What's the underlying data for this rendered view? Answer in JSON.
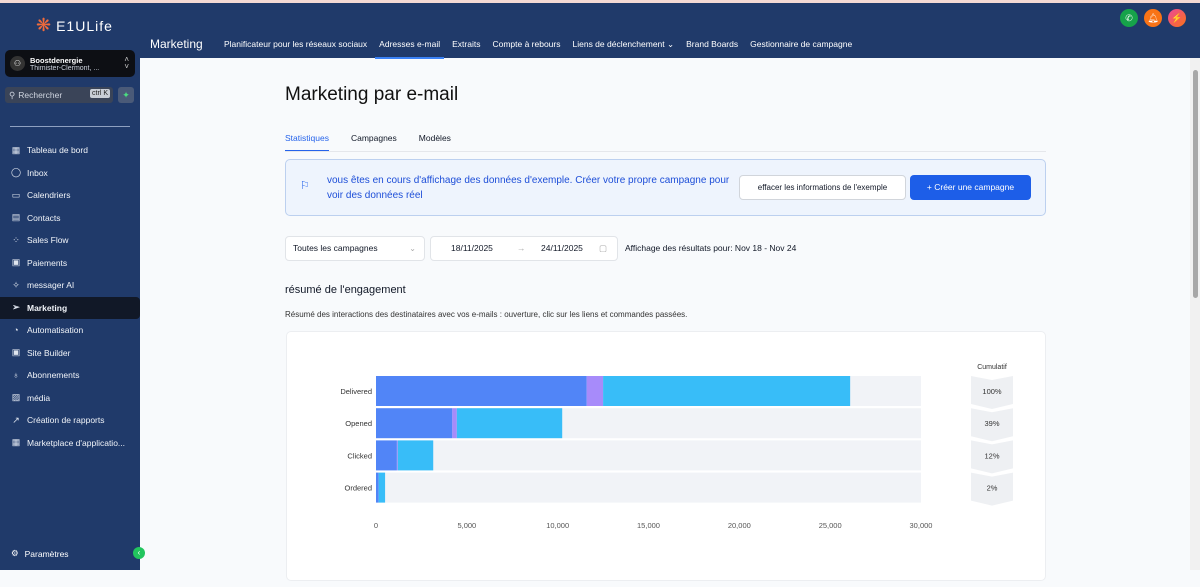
{
  "brand": "E1ULife",
  "account": {
    "name": "Boostdenergie",
    "location": "Thimister-Clermont, ..."
  },
  "search": {
    "placeholder": "Rechercher",
    "shortcut": "ctrl K"
  },
  "sidebar": {
    "items": [
      {
        "label": "Tableau de bord",
        "icon": "dashboard-icon",
        "glyph": "▦"
      },
      {
        "label": "Inbox",
        "icon": "chat-icon",
        "glyph": "◯"
      },
      {
        "label": "Calendriers",
        "icon": "calendar-icon",
        "glyph": "▭"
      },
      {
        "label": "Contacts",
        "icon": "contacts-icon",
        "glyph": "▤"
      },
      {
        "label": "Sales Flow",
        "icon": "flow-icon",
        "glyph": "⁘"
      },
      {
        "label": "Paiements",
        "icon": "payment-icon",
        "glyph": "▣"
      },
      {
        "label": "messager AI",
        "icon": "sparkle-icon",
        "glyph": "✧"
      },
      {
        "label": "Marketing",
        "icon": "send-icon",
        "glyph": "➢",
        "active": true
      },
      {
        "label": "Automatisation",
        "icon": "automation-icon",
        "glyph": "◔"
      },
      {
        "label": "Site Builder",
        "icon": "site-icon",
        "glyph": "▣"
      },
      {
        "label": "Abonnements",
        "icon": "award-icon",
        "glyph": "♁"
      },
      {
        "label": "média",
        "icon": "image-icon",
        "glyph": "▨"
      },
      {
        "label": "Création de rapports",
        "icon": "trend-icon",
        "glyph": "↗"
      },
      {
        "label": "Marketplace d'applicatio...",
        "icon": "apps-icon",
        "glyph": "▦"
      }
    ],
    "settings": "Paramètres"
  },
  "topbar": {
    "title": "Marketing",
    "tabs": [
      "Planificateur pour les réseaux sociaux",
      "Adresses e-mail",
      "Extraits",
      "Compte à rebours",
      "Liens de déclenchement ⌄",
      "Brand Boards",
      "Gestionnaire de campagne"
    ],
    "active": 1
  },
  "page": {
    "title": "Marketing par e-mail",
    "subtabs": [
      "Statistiques",
      "Campagnes",
      "Modèles"
    ],
    "banner": {
      "message": "vous êtes en cours d'affichage des données d'exemple. Créer votre propre campagne pour voir des données réel",
      "clear": "effacer les informations de l'exemple",
      "create": "+ Créer une campagne"
    },
    "filter": {
      "campaign": "Toutes les campagnes",
      "start": "18/11/2025",
      "end": "24/11/2025",
      "results": "Affichage des résultats pour: Nov 18 - Nov 24"
    },
    "section_title": "résumé de l'engagement",
    "section_desc": "Résumé des interactions des destinataires avec vos e-mails : ouverture, clic sur les liens et commandes passées."
  },
  "chart_data": {
    "type": "bar",
    "orientation": "horizontal",
    "stacked": true,
    "categories": [
      "Delivered",
      "Opened",
      "Clicked",
      "Ordered"
    ],
    "series": [
      {
        "name": "segment-1",
        "color": "#5185f7",
        "values": [
          11600,
          4200,
          1150,
          150
        ]
      },
      {
        "name": "segment-2",
        "color": "#a78bfa",
        "values": [
          900,
          250,
          50,
          0
        ]
      },
      {
        "name": "segment-3",
        "color": "#38bdf8",
        "values": [
          13600,
          5800,
          1950,
          350
        ]
      }
    ],
    "xlim": [
      0,
      30000
    ],
    "xticks": [
      "0",
      "5,000",
      "10,000",
      "15,000",
      "20,000",
      "25,000",
      "30,000"
    ],
    "cumulative_label": "Cumulatif",
    "cumulative": [
      "100%",
      "39%",
      "12%",
      "2%"
    ]
  }
}
